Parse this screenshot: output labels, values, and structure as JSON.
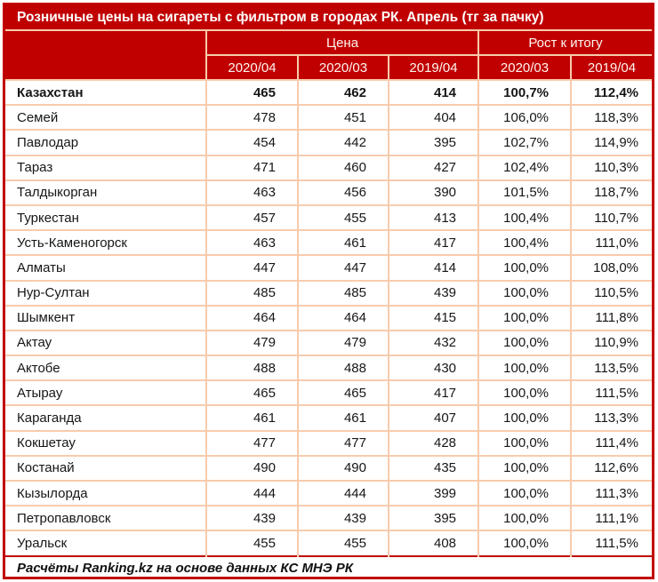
{
  "colors": {
    "header_bg": "#c00000",
    "outer_border": "#c00000",
    "cell_border": "#f8cbad",
    "header_text": "#ffffff",
    "body_text": "#161616"
  },
  "chart_data": {
    "type": "table",
    "title": "Розничные цены на сигареты с фильтром в городах РК. Апрель (тг за пачку)",
    "column_groups": [
      {
        "label": "Цена",
        "span": 3
      },
      {
        "label": "Рост к итогу",
        "span": 2
      }
    ],
    "columns": [
      "2020/04",
      "2020/03",
      "2019/04",
      "2020/03",
      "2019/04"
    ],
    "total_row": {
      "name": "Казахстан",
      "values": [
        "465",
        "462",
        "414",
        "100,7%",
        "112,4%"
      ]
    },
    "rows": [
      {
        "name": "Семей",
        "values": [
          "478",
          "451",
          "404",
          "106,0%",
          "118,3%"
        ]
      },
      {
        "name": "Павлодар",
        "values": [
          "454",
          "442",
          "395",
          "102,7%",
          "114,9%"
        ]
      },
      {
        "name": "Тараз",
        "values": [
          "471",
          "460",
          "427",
          "102,4%",
          "110,3%"
        ]
      },
      {
        "name": "Талдыкорган",
        "values": [
          "463",
          "456",
          "390",
          "101,5%",
          "118,7%"
        ]
      },
      {
        "name": "Туркестан",
        "values": [
          "457",
          "455",
          "413",
          "100,4%",
          "110,7%"
        ]
      },
      {
        "name": "Усть-Каменогорск",
        "values": [
          "463",
          "461",
          "417",
          "100,4%",
          "111,0%"
        ]
      },
      {
        "name": "Алматы",
        "values": [
          "447",
          "447",
          "414",
          "100,0%",
          "108,0%"
        ]
      },
      {
        "name": "Нур-Султан",
        "values": [
          "485",
          "485",
          "439",
          "100,0%",
          "110,5%"
        ]
      },
      {
        "name": "Шымкент",
        "values": [
          "464",
          "464",
          "415",
          "100,0%",
          "111,8%"
        ]
      },
      {
        "name": "Актау",
        "values": [
          "479",
          "479",
          "432",
          "100,0%",
          "110,9%"
        ]
      },
      {
        "name": "Актобе",
        "values": [
          "488",
          "488",
          "430",
          "100,0%",
          "113,5%"
        ]
      },
      {
        "name": "Атырау",
        "values": [
          "465",
          "465",
          "417",
          "100,0%",
          "111,5%"
        ]
      },
      {
        "name": "Караганда",
        "values": [
          "461",
          "461",
          "407",
          "100,0%",
          "113,3%"
        ]
      },
      {
        "name": "Кокшетау",
        "values": [
          "477",
          "477",
          "428",
          "100,0%",
          "111,4%"
        ]
      },
      {
        "name": "Костанай",
        "values": [
          "490",
          "490",
          "435",
          "100,0%",
          "112,6%"
        ]
      },
      {
        "name": "Кызылорда",
        "values": [
          "444",
          "444",
          "399",
          "100,0%",
          "111,3%"
        ]
      },
      {
        "name": "Петропавловск",
        "values": [
          "439",
          "439",
          "395",
          "100,0%",
          "111,1%"
        ]
      },
      {
        "name": "Уральск",
        "values": [
          "455",
          "455",
          "408",
          "100,0%",
          "111,5%"
        ]
      }
    ],
    "source": "Расчёты Ranking.kz на основе данных КС МНЭ РК"
  }
}
